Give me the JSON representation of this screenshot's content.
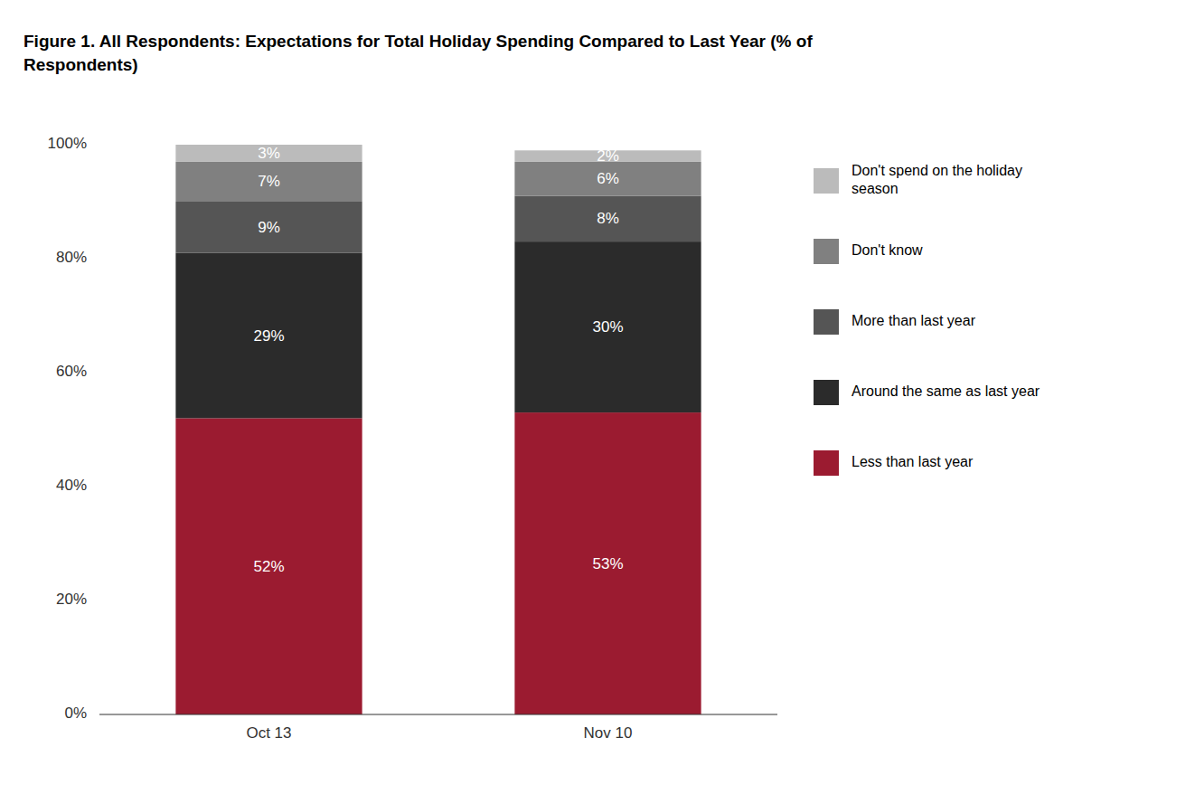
{
  "chart_data": {
    "type": "bar",
    "title": "Figure 1. All Respondents: Expectations for Total Holiday Spending Compared to Last Year (% of\nRespondents)",
    "categories": [
      "Oct 13",
      "Nov 10"
    ],
    "series": [
      {
        "name": "Less than last year",
        "color": "#9B1B30",
        "values": [
          52,
          53
        ],
        "value_labels": [
          "52%",
          "53%"
        ]
      },
      {
        "name": "Around the same as last year",
        "color": "#2B2B2B",
        "values": [
          29,
          30
        ],
        "value_labels": [
          "29%",
          "30%"
        ]
      },
      {
        "name": "More than last year",
        "color": "#555555",
        "values": [
          9,
          8
        ],
        "value_labels": [
          "9%",
          "8%"
        ]
      },
      {
        "name": "Don't know",
        "color": "#808080",
        "values": [
          7,
          6
        ],
        "value_labels": [
          "7%",
          "6%"
        ]
      },
      {
        "name": "Don't spend on the holiday\nseason",
        "color": "#BBBBBB",
        "values": [
          3,
          2
        ],
        "value_labels": [
          "3%",
          "2%"
        ]
      }
    ],
    "ylim": [
      0,
      100
    ],
    "yticks": [
      {
        "value": 0,
        "label": "0%"
      },
      {
        "value": 20,
        "label": "20%"
      },
      {
        "value": 40,
        "label": "40%"
      },
      {
        "value": 60,
        "label": "60%"
      },
      {
        "value": 80,
        "label": "80%"
      },
      {
        "value": 100,
        "label": "100%"
      }
    ],
    "stacked": true,
    "data_labels": true,
    "grid": false,
    "legend": "right"
  }
}
